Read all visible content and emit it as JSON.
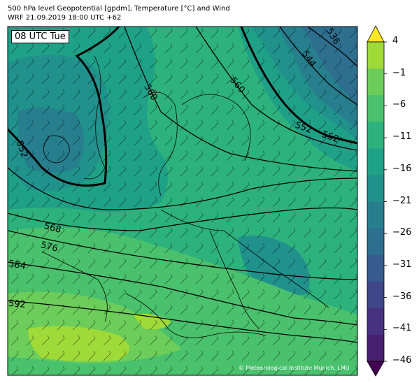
{
  "header": {
    "title_line1": "500 hPa level Geopotential [gpdm], Temperature [°C] and Wind",
    "title_line2": "WRF 21.09.2019 18:00 UTC +62"
  },
  "map": {
    "time_label": "08 UTC Tue",
    "copyright": "© Meteorological Institute Munich, LMU",
    "contour_labels": [
      "536",
      "544",
      "552",
      "552",
      "552",
      "560",
      "560",
      "568",
      "576",
      "584",
      "592"
    ]
  },
  "colorbar": {
    "ticks": [
      "4",
      "−1",
      "−6",
      "−11",
      "−16",
      "−21",
      "−26",
      "−31",
      "−36",
      "−41",
      "−46"
    ],
    "colors": [
      "#fde725",
      "#a0da39",
      "#6ccd5a",
      "#4ac16d",
      "#2db27d",
      "#1fa187",
      "#21918c",
      "#277f8e",
      "#2e6e8e",
      "#365c8d",
      "#3f4788",
      "#46327e",
      "#481f70",
      "#440154"
    ]
  }
}
